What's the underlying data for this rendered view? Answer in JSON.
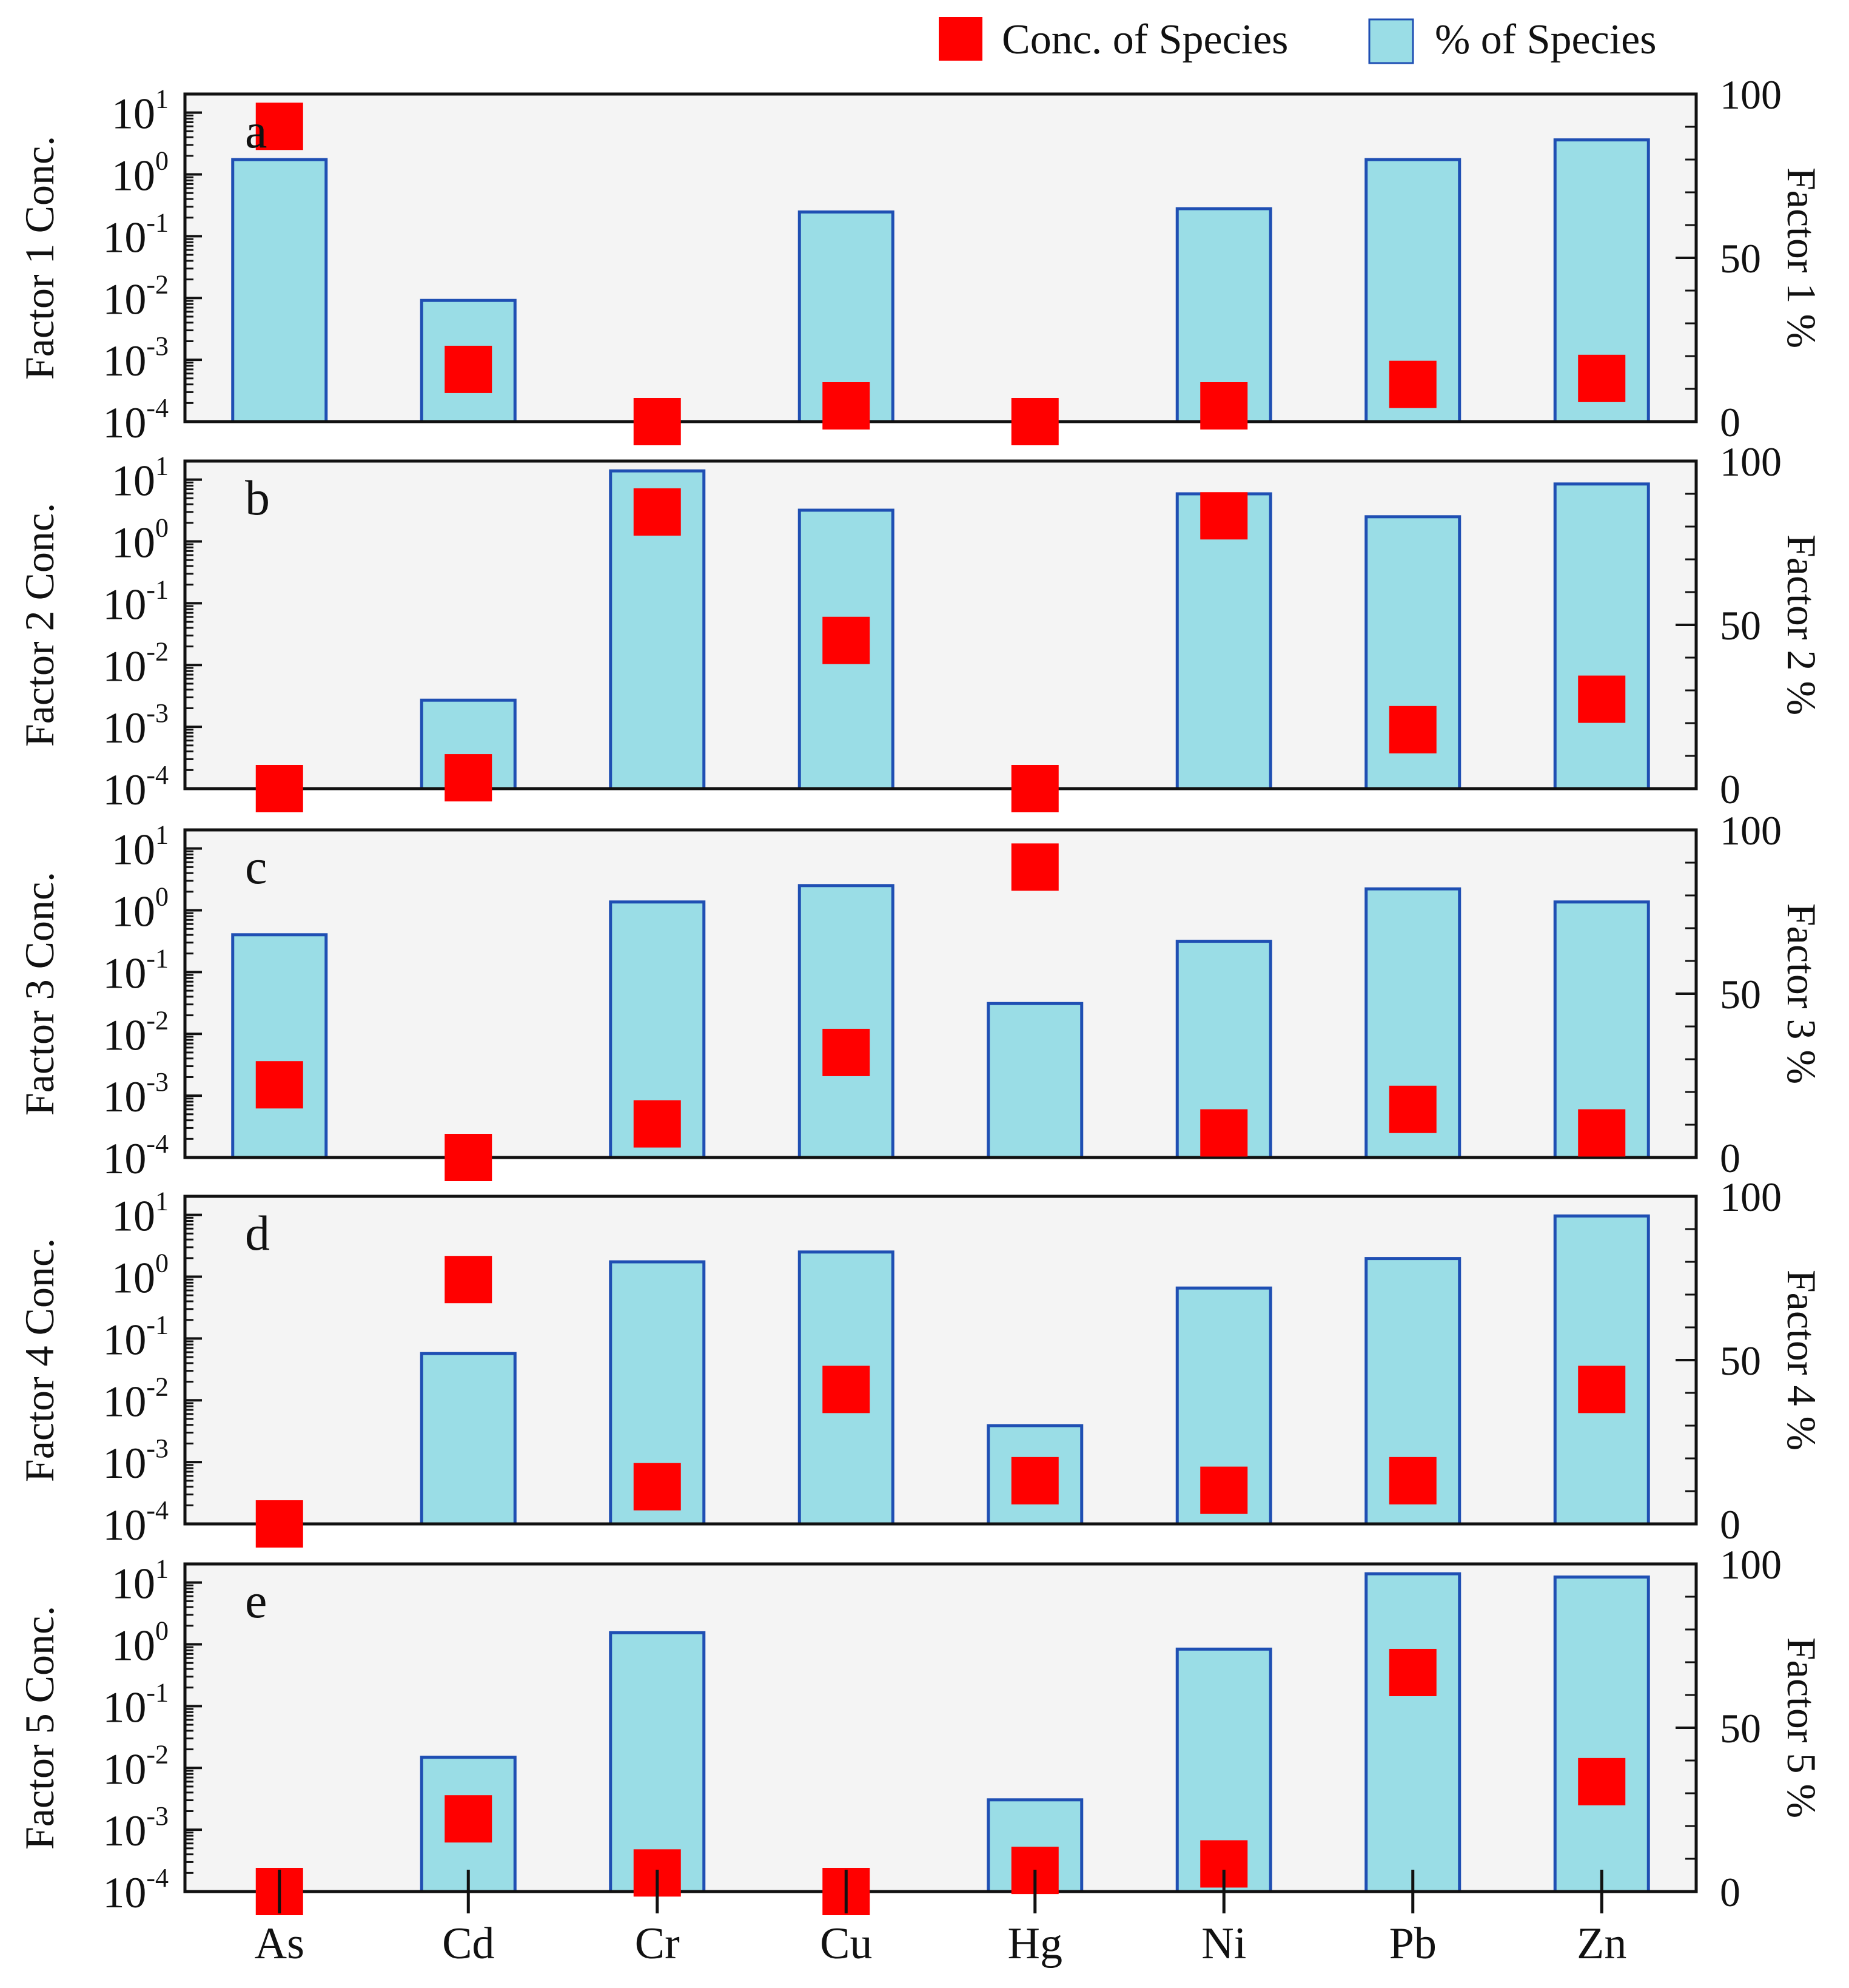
{
  "chart_data": {
    "type": "bar",
    "categories": [
      "As",
      "Cd",
      "Cr",
      "Cu",
      "Hg",
      "Ni",
      "Pb",
      "Zn"
    ],
    "legend": {
      "conc_label": "Conc. of  Species",
      "percent_label": "% of Species",
      "placement": "top-right"
    },
    "colors": {
      "bar_fill": "#9adde6",
      "bar_stroke": "#1f4fb3",
      "marker": "#ff0000",
      "panel_bg": "#f4f4f4",
      "axis": "#111111"
    },
    "left_axis": {
      "scale": "log",
      "ylim": [
        0.0001,
        20
      ],
      "tick_labels": [
        {
          "base": "10",
          "exp": "-4",
          "value": 0.0001
        },
        {
          "base": "10",
          "exp": "-3",
          "value": 0.001
        },
        {
          "base": "10",
          "exp": "-2",
          "value": 0.01
        },
        {
          "base": "10",
          "exp": "-1",
          "value": 0.1
        },
        {
          "base": "10",
          "exp": "0",
          "value": 1
        },
        {
          "base": "10",
          "exp": "1",
          "value": 10
        }
      ]
    },
    "right_axis": {
      "ylim": [
        0,
        100
      ],
      "tick_labels": [
        "0",
        "50",
        "100"
      ],
      "tick_values": [
        0,
        50,
        100
      ]
    },
    "panels": [
      {
        "letter": "a",
        "ylabel_left": "Factor 1 Conc.",
        "ylabel_right": "Factor 1 %",
        "percent": [
          80,
          37,
          0,
          64,
          0,
          65,
          80,
          86
        ],
        "conc": [
          6,
          0.0007,
          5e-05,
          0.00018,
          5e-05,
          0.00018,
          0.0004,
          0.0005
        ]
      },
      {
        "letter": "b",
        "ylabel_left": "Factor 2 Conc.",
        "ylabel_right": "Factor 2 %",
        "percent": [
          0,
          27,
          97,
          85,
          0,
          90,
          83,
          93
        ],
        "conc": [
          0.0001,
          0.00015,
          3,
          0.025,
          0.0001,
          2.6,
          0.0009,
          0.0028
        ]
      },
      {
        "letter": "c",
        "ylabel_left": "Factor 3 Conc.",
        "ylabel_right": "Factor 3 %",
        "percent": [
          68,
          0,
          78,
          83,
          47,
          66,
          82,
          78
        ],
        "conc": [
          0.0015,
          0.0001,
          0.00035,
          0.005,
          5,
          0.00025,
          0.0006,
          0.00025
        ]
      },
      {
        "letter": "d",
        "ylabel_left": "Factor 4 Conc.",
        "ylabel_right": "Factor 4 %",
        "percent": [
          0,
          52,
          80,
          83,
          30,
          72,
          81,
          94
        ],
        "conc": [
          0.0001,
          0.9,
          0.0004,
          0.015,
          0.0005,
          0.00035,
          0.0005,
          0.015
        ]
      },
      {
        "letter": "e",
        "ylabel_left": "Factor 5 Conc.",
        "ylabel_right": "Factor 5 %",
        "percent": [
          0,
          41,
          79,
          0,
          28,
          74,
          97,
          96
        ],
        "conc": [
          0.0001,
          0.0015,
          0.0002,
          0.0001,
          0.00022,
          0.00028,
          0.35,
          0.006
        ]
      }
    ]
  }
}
